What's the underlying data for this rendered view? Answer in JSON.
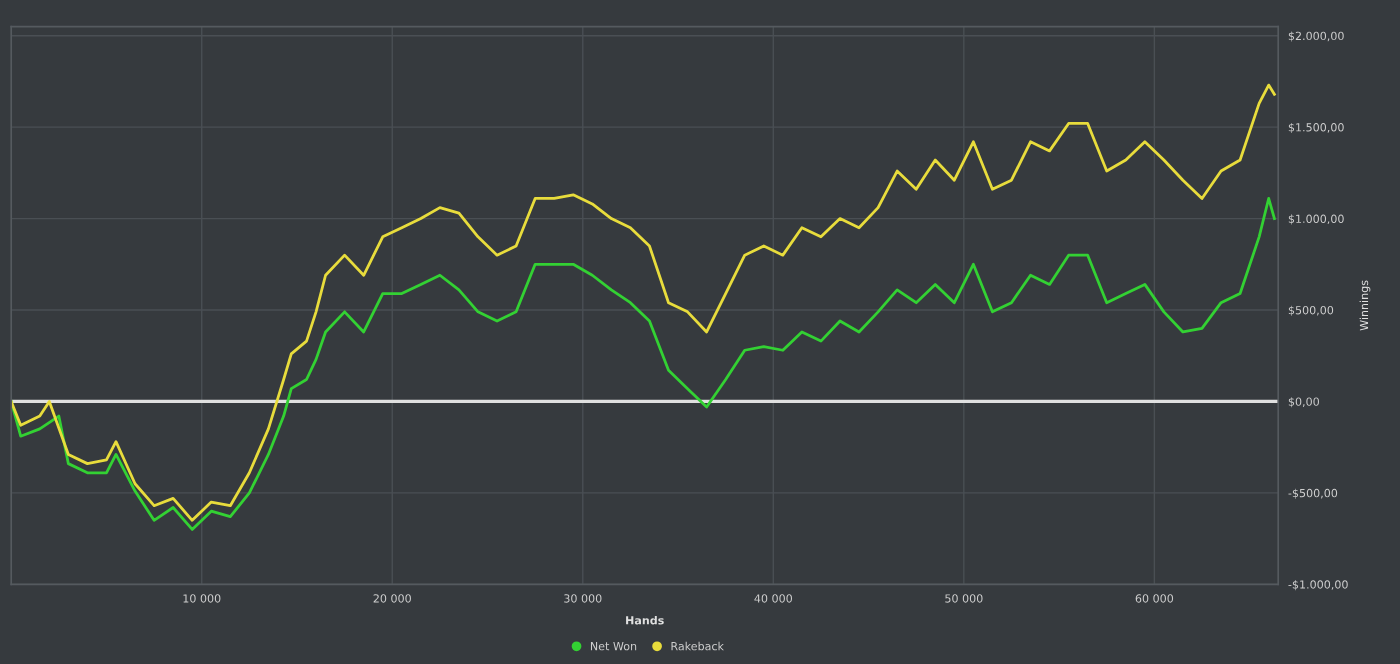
{
  "chart_data": {
    "type": "line",
    "xlabel": "Hands",
    "ylabel": "Winnings",
    "xlim": [
      0,
      66500
    ],
    "ylim": [
      -1000,
      2050
    ],
    "xticks": [
      {
        "value": 10000,
        "label": "10 000"
      },
      {
        "value": 20000,
        "label": "20 000"
      },
      {
        "value": 30000,
        "label": "30 000"
      },
      {
        "value": 40000,
        "label": "40 000"
      },
      {
        "value": 50000,
        "label": "50 000"
      },
      {
        "value": 60000,
        "label": "60 000"
      }
    ],
    "yticks": [
      {
        "value": -1000,
        "label": "-$1.000,00"
      },
      {
        "value": -500,
        "label": "-$500,00"
      },
      {
        "value": 0,
        "label": "$0,00"
      },
      {
        "value": 500,
        "label": "$500,00"
      },
      {
        "value": 1000,
        "label": "$1.000,00"
      },
      {
        "value": 1500,
        "label": "$1.500,00"
      },
      {
        "value": 2000,
        "label": "$2.000,00"
      }
    ],
    "grid": true,
    "legend": "bottom",
    "ref_lines": [
      {
        "axis": "y",
        "value": 0,
        "color": "#e0e0e0"
      }
    ],
    "series": [
      {
        "name": "Net Won",
        "color": "#33d133",
        "x": [
          0,
          500,
          1500,
          2500,
          3000,
          4000,
          5000,
          5500,
          6500,
          7500,
          8500,
          9500,
          10500,
          11500,
          12500,
          13500,
          14300,
          14700,
          15500,
          16000,
          16500,
          17500,
          18500,
          19500,
          20500,
          21500,
          22500,
          23500,
          24500,
          25500,
          26500,
          27500,
          28500,
          29500,
          30500,
          31500,
          32500,
          33500,
          34500,
          35500,
          36500,
          37500,
          38500,
          39500,
          40500,
          41500,
          42500,
          43500,
          44500,
          45500,
          46500,
          47500,
          48500,
          49500,
          50500,
          51500,
          52500,
          53500,
          54500,
          55500,
          56500,
          57500,
          58500,
          59500,
          60500,
          61500,
          62500,
          63500,
          64500,
          65500,
          66000,
          66300
        ],
        "values": [
          0,
          -190,
          -150,
          -80,
          -340,
          -390,
          -390,
          -290,
          -490,
          -650,
          -580,
          -700,
          -600,
          -630,
          -500,
          -290,
          -80,
          70,
          120,
          230,
          380,
          490,
          380,
          590,
          590,
          640,
          690,
          610,
          490,
          440,
          490,
          750,
          750,
          750,
          690,
          610,
          540,
          440,
          170,
          70,
          -30,
          120,
          280,
          300,
          280,
          380,
          330,
          440,
          380,
          490,
          610,
          540,
          640,
          540,
          750,
          490,
          540,
          690,
          640,
          800,
          800,
          540,
          590,
          640,
          490,
          380,
          400,
          540,
          590,
          900,
          1110,
          1000
        ]
      },
      {
        "name": "Rakeback",
        "color": "#e8dc3c",
        "x": [
          0,
          500,
          1500,
          2000,
          3000,
          4000,
          5000,
          5500,
          6500,
          7500,
          8500,
          9500,
          10500,
          11500,
          12500,
          13500,
          14300,
          14700,
          15500,
          16000,
          16500,
          17500,
          18500,
          19500,
          20500,
          21500,
          22500,
          23500,
          24500,
          25500,
          26500,
          27500,
          28500,
          29500,
          30500,
          31500,
          32500,
          33500,
          34500,
          35500,
          36500,
          37500,
          38500,
          39500,
          40500,
          41500,
          42500,
          43500,
          44500,
          45500,
          46500,
          47500,
          48500,
          49500,
          50500,
          51500,
          52500,
          53500,
          54500,
          55500,
          56500,
          57500,
          58500,
          59500,
          60500,
          61500,
          62500,
          63500,
          64500,
          65500,
          66000,
          66300
        ],
        "values": [
          0,
          -130,
          -80,
          0,
          -290,
          -340,
          -320,
          -220,
          -450,
          -570,
          -530,
          -650,
          -550,
          -570,
          -390,
          -150,
          120,
          260,
          330,
          490,
          690,
          800,
          690,
          900,
          950,
          1000,
          1060,
          1030,
          900,
          800,
          850,
          1110,
          1110,
          1130,
          1080,
          1000,
          950,
          850,
          540,
          490,
          380,
          590,
          800,
          850,
          800,
          950,
          900,
          1000,
          950,
          1060,
          1260,
          1160,
          1320,
          1210,
          1420,
          1160,
          1210,
          1420,
          1370,
          1520,
          1520,
          1260,
          1320,
          1420,
          1320,
          1210,
          1110,
          1260,
          1320,
          1630,
          1730,
          1680
        ]
      }
    ]
  }
}
